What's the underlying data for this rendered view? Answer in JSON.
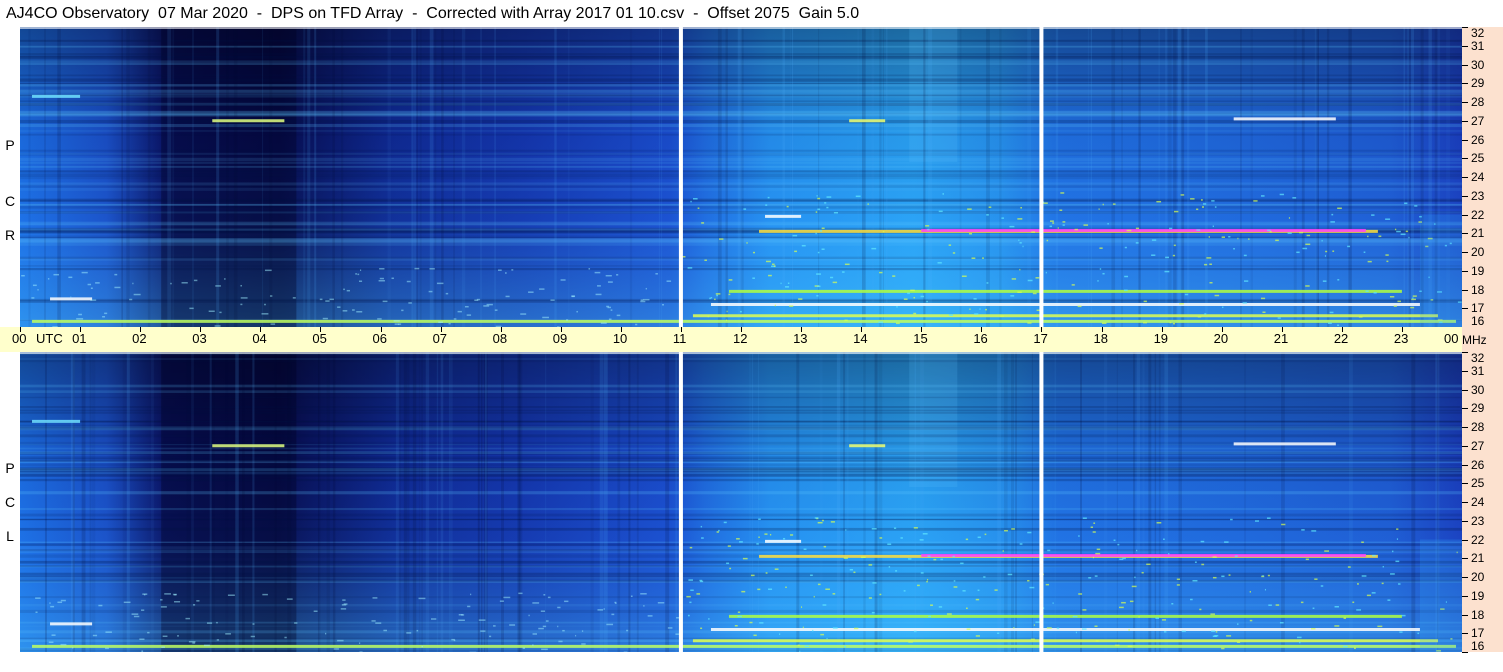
{
  "title": "AJ4CO Observatory  07 Mar 2020  -  DPS on TFD Array  -  Corrected with Array 2017 01 10.csv  -  Offset 2075  Gain 5.0",
  "chart_data": {
    "type": "heatmap",
    "title": "AJ4CO Observatory  07 Mar 2020  -  DPS on TFD Array  -  Corrected with Array 2017 01 10.csv  -  Offset 2075  Gain 5.0",
    "x_axis": {
      "label": "UTC",
      "ticks": [
        "00",
        "01",
        "02",
        "03",
        "04",
        "05",
        "06",
        "07",
        "08",
        "09",
        "10",
        "11",
        "12",
        "13",
        "14",
        "15",
        "16",
        "17",
        "18",
        "19",
        "20",
        "21",
        "22",
        "23",
        "00"
      ],
      "range": [
        0,
        24
      ]
    },
    "y_axis": {
      "unit": "MHz",
      "ticks": [
        "16",
        "17",
        "18",
        "19",
        "20",
        "21",
        "22",
        "23",
        "24",
        "25",
        "26",
        "27",
        "28",
        "29",
        "30",
        "31",
        "32"
      ],
      "range": [
        16,
        32
      ]
    },
    "panels": [
      {
        "label": [
          "R",
          "C",
          "P"
        ]
      },
      {
        "label": [
          "L",
          "C",
          "P"
        ]
      }
    ],
    "white_markers_utc": [
      11,
      17
    ],
    "colors": {
      "low": "#0a1050",
      "mid": "#1a5ad8",
      "high": "#30d0ff",
      "peak": "#e0ff50"
    }
  }
}
